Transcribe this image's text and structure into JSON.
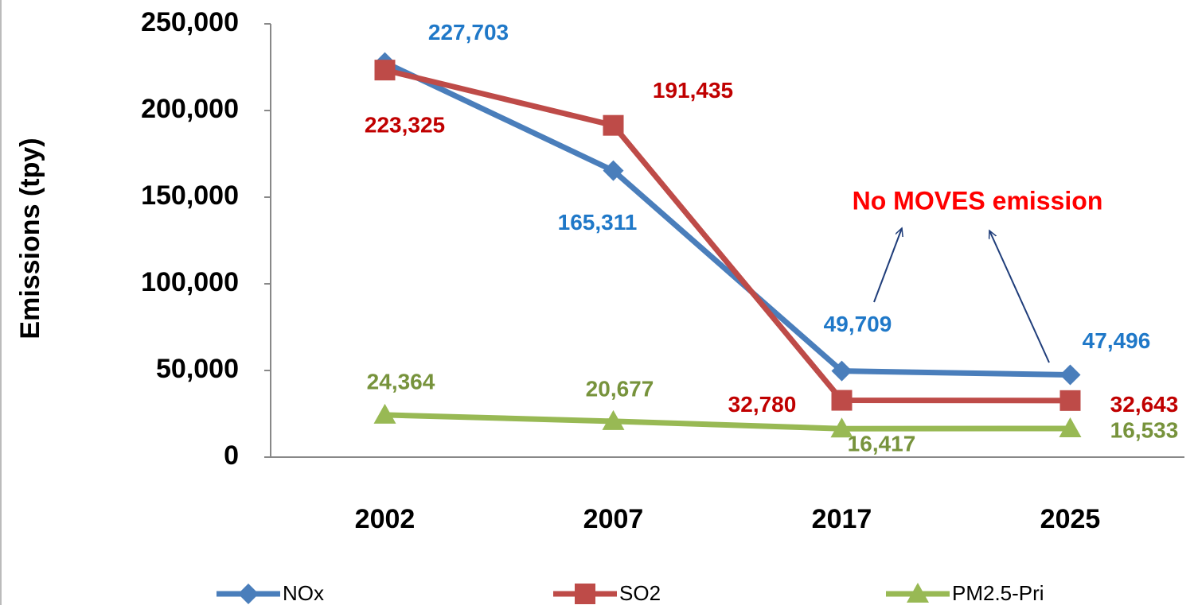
{
  "chart_data": {
    "type": "line",
    "y_axis_label": "Emissions (tpy)",
    "annotation": "No MOVES emission",
    "categories": [
      "2002",
      "2007",
      "2017",
      "2025"
    ],
    "series": [
      {
        "name": "NOx",
        "color": "#4a7ebb",
        "marker": "diamond",
        "label_color": "#1f78c8",
        "values": [
          227703,
          165311,
          49709,
          47496
        ],
        "value_labels": [
          "227,703",
          "165,311",
          "49,709",
          "47,496"
        ]
      },
      {
        "name": "SO2",
        "color": "#be4b48",
        "marker": "square",
        "label_color": "#c00000",
        "values": [
          223325,
          191435,
          32780,
          32643
        ],
        "value_labels": [
          "223,325",
          "191,435",
          "32,780",
          "32,643"
        ]
      },
      {
        "name": "PM2.5-Pri",
        "color": "#98b954",
        "marker": "triangle",
        "label_color": "#77933c",
        "values": [
          24364,
          20677,
          16417,
          16533
        ],
        "value_labels": [
          "24,364",
          "20,677",
          "16,417",
          "16,533"
        ]
      }
    ],
    "ylim": [
      0,
      250000
    ],
    "yticks": [
      0,
      {
        "value": 50000,
        "label": "50,000"
      },
      {
        "value": 100000,
        "label": "100,000"
      },
      {
        "value": 150000,
        "label": "150,000"
      },
      {
        "value": 200000,
        "label": "200,000"
      },
      {
        "value": 250000,
        "label": "250,000"
      }
    ],
    "grid": false,
    "legend": "bottom"
  }
}
